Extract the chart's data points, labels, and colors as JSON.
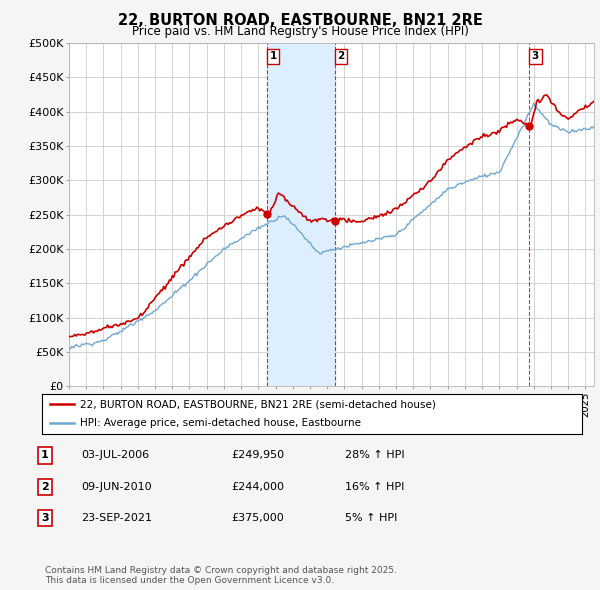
{
  "title1": "22, BURTON ROAD, EASTBOURNE, BN21 2RE",
  "title2": "Price paid vs. HM Land Registry's House Price Index (HPI)",
  "legend_line1": "22, BURTON ROAD, EASTBOURNE, BN21 2RE (semi-detached house)",
  "legend_line2": "HPI: Average price, semi-detached house, Eastbourne",
  "footer": "Contains HM Land Registry data © Crown copyright and database right 2025.\nThis data is licensed under the Open Government Licence v3.0.",
  "transactions": [
    {
      "label": "1",
      "date": "03-JUL-2006",
      "price": 249950,
      "hpi_pct": "28% ↑ HPI",
      "x": 2006.5
    },
    {
      "label": "2",
      "date": "09-JUN-2010",
      "price": 244000,
      "hpi_pct": "16% ↑ HPI",
      "x": 2010.44
    },
    {
      "label": "3",
      "date": "23-SEP-2021",
      "price": 375000,
      "hpi_pct": "5% ↑ HPI",
      "x": 2021.73
    }
  ],
  "hpi_color": "#6fa8d0",
  "price_color": "#cc0000",
  "shade_color": "#ddeeff",
  "background_color": "#f5f5f5",
  "plot_bg": "#ffffff",
  "grid_color": "#cccccc",
  "ylim": [
    0,
    500000
  ],
  "yticks": [
    0,
    50000,
    100000,
    150000,
    200000,
    250000,
    300000,
    350000,
    400000,
    450000,
    500000
  ],
  "ytick_labels": [
    "£0",
    "£50K",
    "£100K",
    "£150K",
    "£200K",
    "£250K",
    "£300K",
    "£350K",
    "£400K",
    "£450K",
    "£500K"
  ],
  "xmin": 1995,
  "xmax": 2025.5
}
